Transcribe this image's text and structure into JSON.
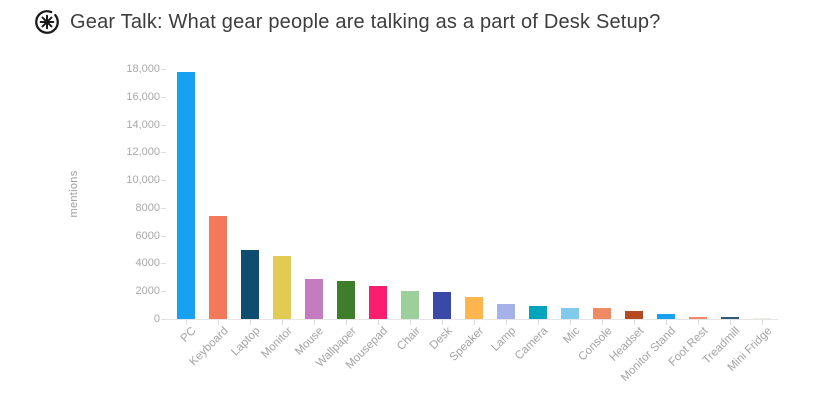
{
  "header": {
    "logo_icon": "circled-asterisk-icon",
    "title": "Gear Talk: What gear people are talking as a part of Desk Setup?"
  },
  "chart_data": {
    "type": "bar",
    "title": "Gear Talk: What gear people are talking as a part of Desk Setup?",
    "xlabel": "",
    "ylabel": "mentions",
    "ylim": [
      0,
      18000
    ],
    "ytick_values": [
      0,
      2000,
      4000,
      6000,
      8000,
      10000,
      12000,
      14000,
      16000,
      18000
    ],
    "ytick_labels": [
      "0",
      "2000",
      "4000",
      "6000",
      "8000",
      "10,000",
      "12,000",
      "14,000",
      "16,000",
      "18,000"
    ],
    "grid": false,
    "legend_position": "none",
    "categories": [
      "PC",
      "Keyboard",
      "Laptop",
      "Monitor",
      "Mouse",
      "Wallpaper",
      "Mousepad",
      "Chair",
      "Desk",
      "Speaker",
      "Lamp",
      "Camera",
      "Mic",
      "Console",
      "Headset",
      "Monitor Stand",
      "Foot Rest",
      "Treadmill",
      "Mini Fridge"
    ],
    "values": [
      17800,
      7450,
      4950,
      4550,
      2850,
      2700,
      2350,
      2050,
      1950,
      1550,
      1050,
      950,
      820,
      790,
      580,
      370,
      140,
      110,
      40
    ],
    "bar_colors": [
      "#18a1f2",
      "#f4795b",
      "#0e4d6e",
      "#e2cb54",
      "#c47bbf",
      "#3f7d2c",
      "#fb1d6e",
      "#9ccf9a",
      "#3a49a8",
      "#ffb54e",
      "#a4b2e8",
      "#00a4bc",
      "#80cbec",
      "#ef8a64",
      "#b54a22",
      "#18a1f2",
      "#f4886b",
      "#2e5a78",
      "#efeee2"
    ]
  },
  "style_colors": {
    "background": "#ffffff",
    "title_text": "#3d3d3d",
    "axis_text": "#a8a8a8",
    "axis_line": "#e6e6e6",
    "logo": "#1a1a1a"
  }
}
